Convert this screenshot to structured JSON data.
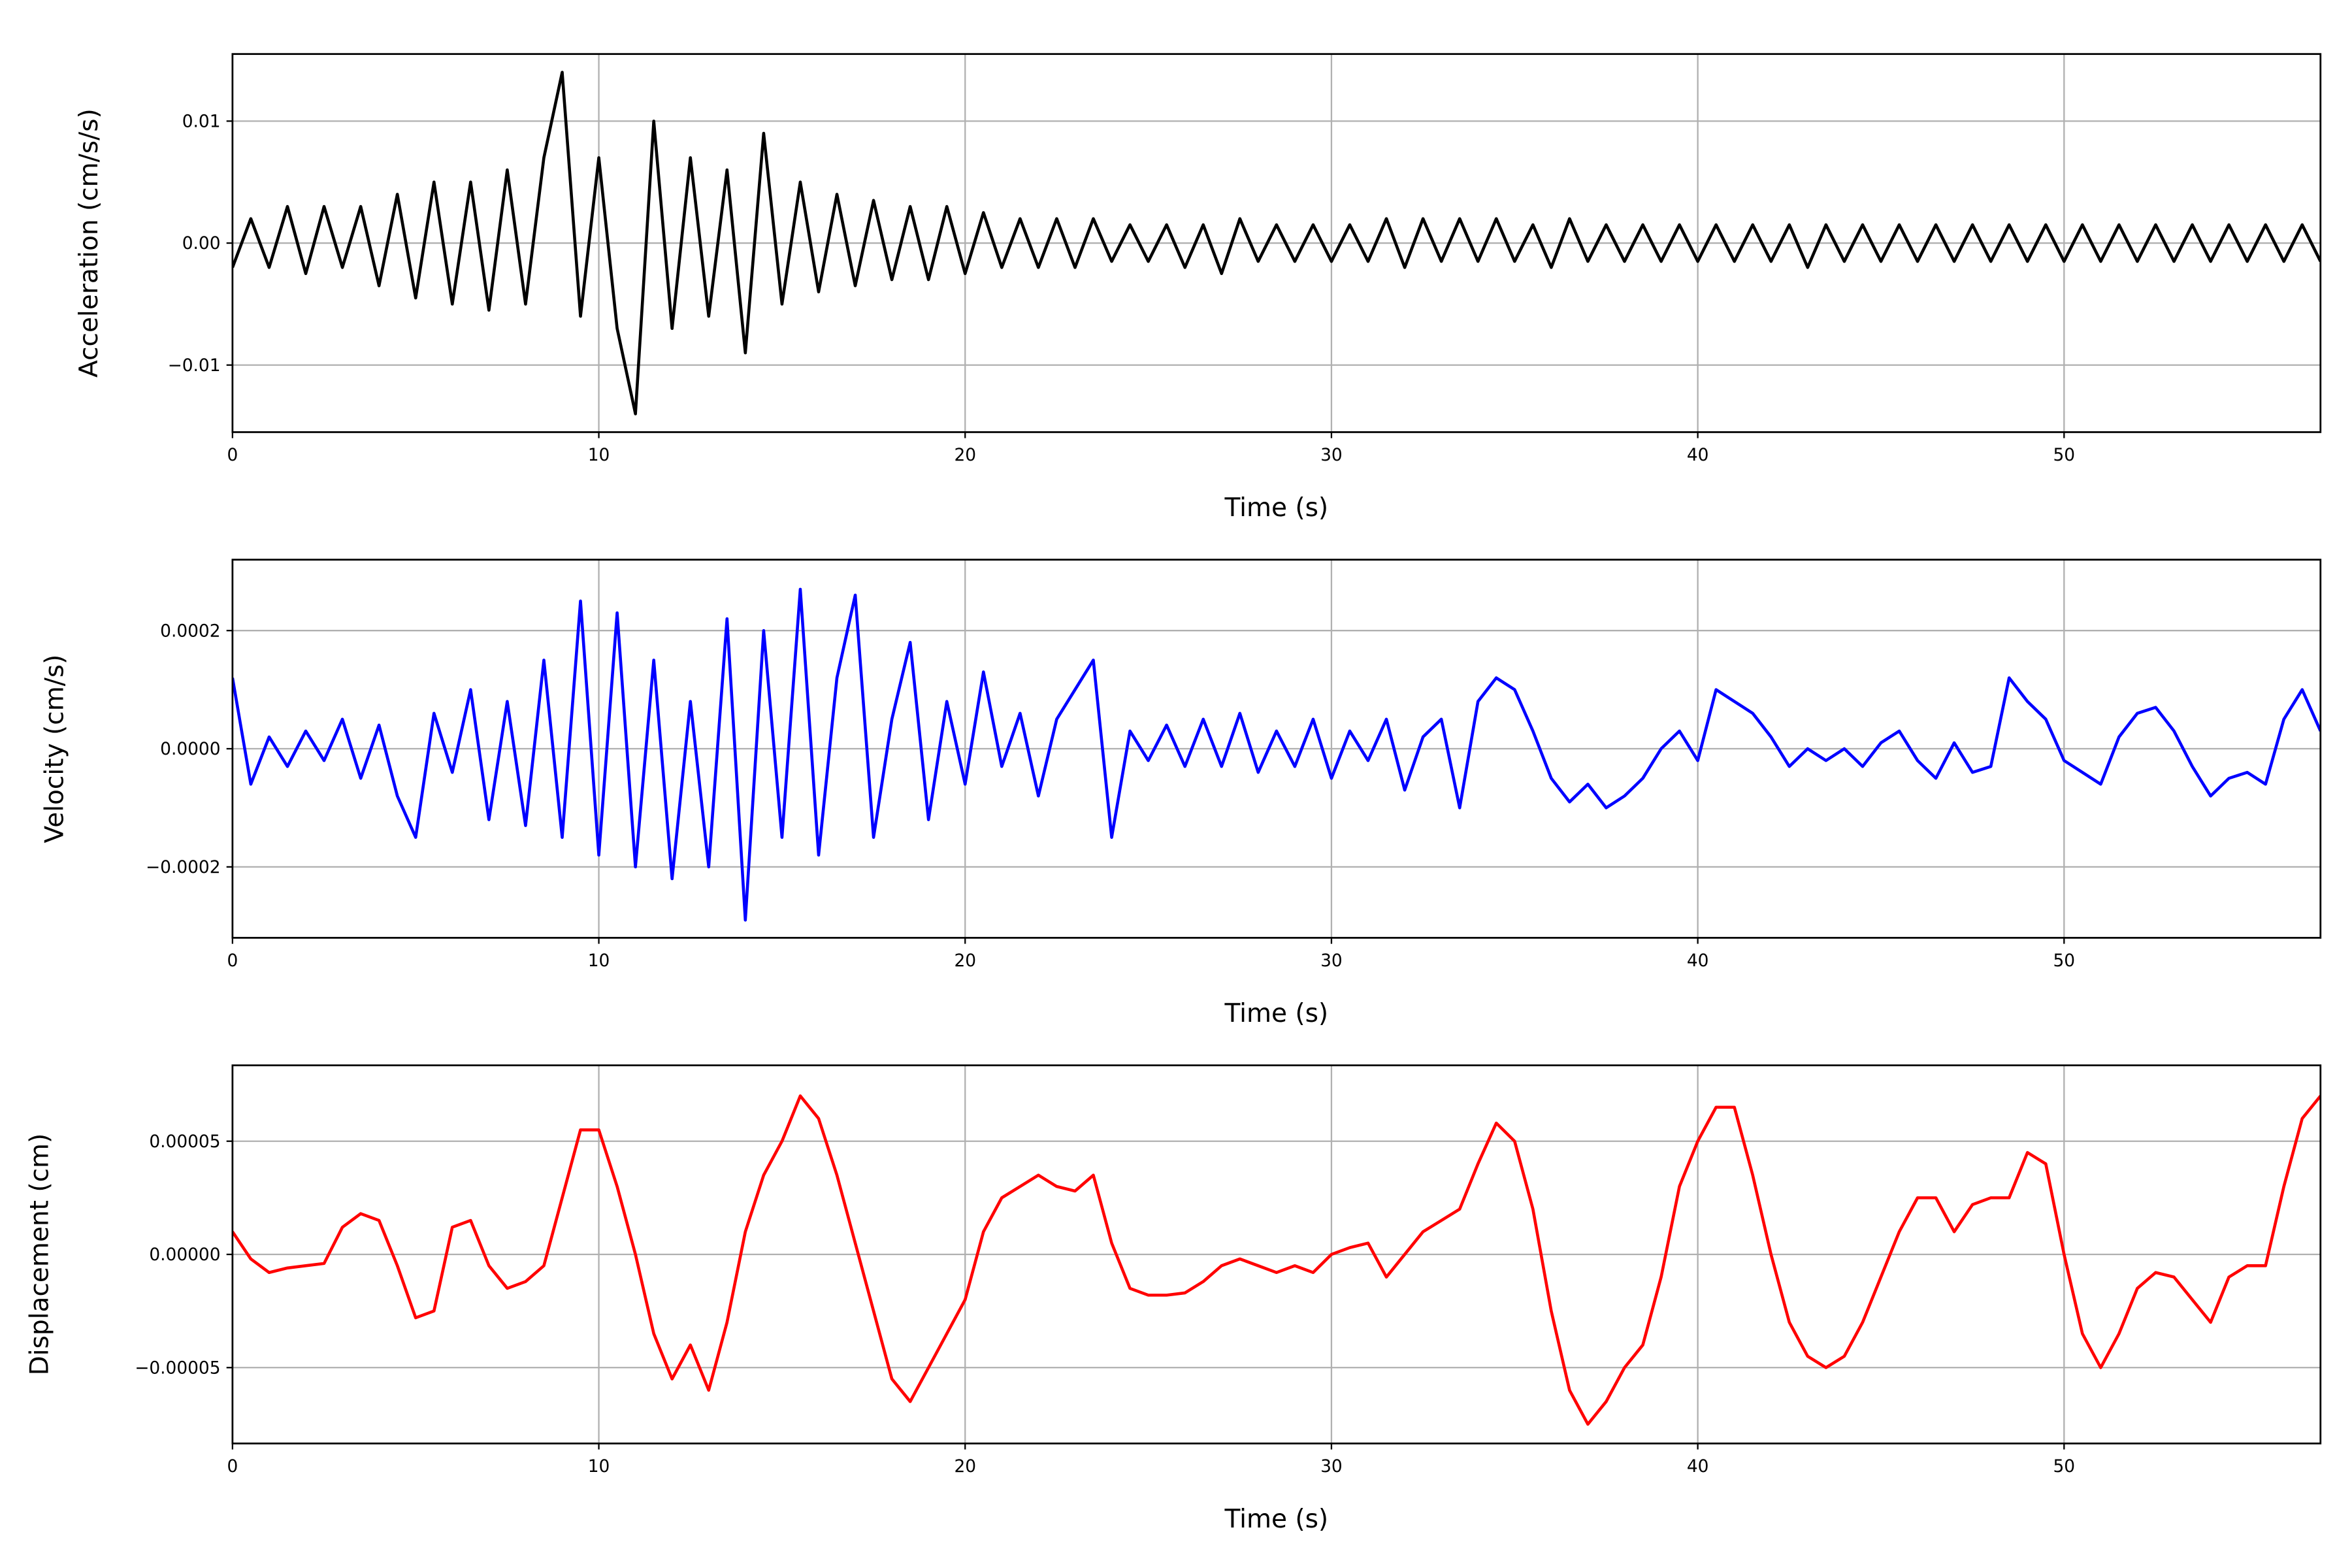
{
  "chart_data": [
    {
      "type": "line",
      "xlabel": "Time (s)",
      "ylabel": "Acceleration (cm/s/s)",
      "color": "#000000",
      "x": [
        0,
        0.5,
        1,
        1.5,
        2,
        2.5,
        3,
        3.5,
        4,
        4.5,
        5,
        5.5,
        6,
        6.5,
        7,
        7.5,
        8,
        8.5,
        9,
        9.5,
        10,
        10.5,
        11,
        11.5,
        12,
        12.5,
        13,
        13.5,
        14,
        14.5,
        15,
        15.5,
        16,
        16.5,
        17,
        17.5,
        18,
        18.5,
        19,
        19.5,
        20,
        20.5,
        21,
        21.5,
        22,
        22.5,
        23,
        23.5,
        24,
        24.5,
        25,
        25.5,
        26,
        26.5,
        27,
        27.5,
        28,
        28.5,
        29,
        29.5,
        30,
        30.5,
        31,
        31.5,
        32,
        32.5,
        33,
        33.5,
        34,
        34.5,
        35,
        35.5,
        36,
        36.5,
        37,
        37.5,
        38,
        38.5,
        39,
        39.5,
        40,
        40.5,
        41,
        41.5,
        42,
        42.5,
        43,
        43.5,
        44,
        44.5,
        45,
        45.5,
        46,
        46.5,
        47,
        47.5,
        48,
        48.5,
        49,
        49.5,
        50,
        50.5,
        51,
        51.5,
        52,
        52.5,
        53,
        53.5,
        54,
        54.5,
        55,
        55.5,
        56,
        56.5,
        57
      ],
      "values": [
        -0.002,
        0.002,
        -0.002,
        0.003,
        -0.0025,
        0.003,
        -0.002,
        0.003,
        -0.0035,
        0.004,
        -0.0045,
        0.005,
        -0.005,
        0.005,
        -0.0055,
        0.006,
        -0.005,
        0.007,
        0.014,
        -0.006,
        0.007,
        -0.007,
        -0.014,
        0.01,
        -0.007,
        0.007,
        -0.006,
        0.006,
        -0.009,
        0.009,
        -0.005,
        0.005,
        -0.004,
        0.004,
        -0.0035,
        0.0035,
        -0.003,
        0.003,
        -0.003,
        0.003,
        -0.0025,
        0.0025,
        -0.002,
        0.002,
        -0.002,
        0.002,
        -0.002,
        0.002,
        -0.0015,
        0.0015,
        -0.0015,
        0.0015,
        -0.002,
        0.0015,
        -0.0025,
        0.002,
        -0.0015,
        0.0015,
        -0.0015,
        0.0015,
        -0.0015,
        0.0015,
        -0.0015,
        0.002,
        -0.002,
        0.002,
        -0.0015,
        0.002,
        -0.0015,
        0.002,
        -0.0015,
        0.0015,
        -0.002,
        0.002,
        -0.0015,
        0.0015,
        -0.0015,
        0.0015,
        -0.0015,
        0.0015,
        -0.0015,
        0.0015,
        -0.0015,
        0.0015,
        -0.0015,
        0.0015,
        -0.002,
        0.0015,
        -0.0015,
        0.0015,
        -0.0015,
        0.0015,
        -0.0015,
        0.0015,
        -0.0015,
        0.0015,
        -0.0015,
        0.0015,
        -0.0015,
        0.0015,
        -0.0015,
        0.0015,
        -0.0015,
        0.0015,
        -0.0015,
        0.0015,
        -0.0015,
        0.0015,
        -0.0015,
        0.0015,
        -0.0015,
        0.0015,
        -0.0015,
        0.0015,
        -0.0015
      ],
      "xlim": [
        0,
        57
      ],
      "xticks": [
        0,
        10,
        20,
        30,
        40,
        50
      ],
      "ylim": [
        -0.0155,
        0.0155
      ],
      "yticks": [
        {
          "value": -0.01,
          "label": "−0.01"
        },
        {
          "value": 0,
          "label": "0.00"
        },
        0.01
      ],
      "grid": true
    },
    {
      "type": "line",
      "xlabel": "Time (s)",
      "ylabel": "Velocity (cm/s)",
      "color": "#0000ff",
      "x": [
        0,
        0.5,
        1,
        1.5,
        2,
        2.5,
        3,
        3.5,
        4,
        4.5,
        5,
        5.5,
        6,
        6.5,
        7,
        7.5,
        8,
        8.5,
        9,
        9.5,
        10,
        10.5,
        11,
        11.5,
        12,
        12.5,
        13,
        13.5,
        14,
        14.5,
        15,
        15.5,
        16,
        16.5,
        17,
        17.5,
        18,
        18.5,
        19,
        19.5,
        20,
        20.5,
        21,
        21.5,
        22,
        22.5,
        23,
        23.5,
        24,
        24.5,
        25,
        25.5,
        26,
        26.5,
        27,
        27.5,
        28,
        28.5,
        29,
        29.5,
        30,
        30.5,
        31,
        31.5,
        32,
        32.5,
        33,
        33.5,
        34,
        34.5,
        35,
        35.5,
        36,
        36.5,
        37,
        37.5,
        38,
        38.5,
        39,
        39.5,
        40,
        40.5,
        41,
        41.5,
        42,
        42.5,
        43,
        43.5,
        44,
        44.5,
        45,
        45.5,
        46,
        46.5,
        47,
        47.5,
        48,
        48.5,
        49,
        49.5,
        50,
        50.5,
        51,
        51.5,
        52,
        52.5,
        53,
        53.5,
        54,
        54.5,
        55,
        55.5,
        56,
        56.5,
        57
      ],
      "values": [
        0.00012,
        -6e-05,
        2e-05,
        -3e-05,
        3e-05,
        -2e-05,
        5e-05,
        -5e-05,
        4e-05,
        -8e-05,
        -0.00015,
        6e-05,
        -4e-05,
        0.0001,
        -0.00012,
        8e-05,
        -0.00013,
        0.00015,
        -0.00015,
        0.00025,
        -0.00018,
        0.00023,
        -0.0002,
        0.00015,
        -0.00022,
        8e-05,
        -0.0002,
        0.00022,
        -0.00029,
        0.0002,
        -0.00015,
        0.00027,
        -0.00018,
        0.00012,
        0.00026,
        -0.00015,
        5e-05,
        0.00018,
        -0.00012,
        8e-05,
        -6e-05,
        0.00013,
        -3e-05,
        6e-05,
        -8e-05,
        5e-05,
        0.0001,
        0.00015,
        -0.00015,
        3e-05,
        -2e-05,
        4e-05,
        -3e-05,
        5e-05,
        -3e-05,
        6e-05,
        -4e-05,
        3e-05,
        -3e-05,
        5e-05,
        -5e-05,
        3e-05,
        -2e-05,
        5e-05,
        -7e-05,
        2e-05,
        5e-05,
        -0.0001,
        8e-05,
        0.00012,
        0.0001,
        3e-05,
        -5e-05,
        -9e-05,
        -6e-05,
        -0.0001,
        -8e-05,
        -5e-05,
        0,
        3e-05,
        -2e-05,
        0.0001,
        8e-05,
        6e-05,
        2e-05,
        -3e-05,
        0,
        -2e-05,
        0,
        -3e-05,
        1e-05,
        3e-05,
        -2e-05,
        -5e-05,
        1e-05,
        -4e-05,
        -3e-05,
        0.00012,
        8e-05,
        5e-05,
        -2e-05,
        -4e-05,
        -6e-05,
        2e-05,
        6e-05,
        7e-05,
        3e-05,
        -3e-05,
        -8e-05,
        -5e-05,
        -4e-05,
        -6e-05,
        5e-05,
        0.0001,
        3e-05
      ],
      "xlim": [
        0,
        57
      ],
      "xticks": [
        0,
        10,
        20,
        30,
        40,
        50
      ],
      "ylim": [
        -0.00032,
        0.00032
      ],
      "yticks": [
        {
          "value": -0.0002,
          "label": "−0.0002"
        },
        {
          "value": 0,
          "label": "0.0000"
        },
        0.0002
      ],
      "grid": true
    },
    {
      "type": "line",
      "xlabel": "Time (s)",
      "ylabel": "Displacement (cm)",
      "color": "#ff0000",
      "x": [
        0,
        0.5,
        1,
        1.5,
        2,
        2.5,
        3,
        3.5,
        4,
        4.5,
        5,
        5.5,
        6,
        6.5,
        7,
        7.5,
        8,
        8.5,
        9,
        9.5,
        10,
        10.5,
        11,
        11.5,
        12,
        12.5,
        13,
        13.5,
        14,
        14.5,
        15,
        15.5,
        16,
        16.5,
        17,
        17.5,
        18,
        18.5,
        19,
        19.5,
        20,
        20.5,
        21,
        21.5,
        22,
        22.5,
        23,
        23.5,
        24,
        24.5,
        25,
        25.5,
        26,
        26.5,
        27,
        27.5,
        28,
        28.5,
        29,
        29.5,
        30,
        30.5,
        31,
        31.5,
        32,
        32.5,
        33,
        33.5,
        34,
        34.5,
        35,
        35.5,
        36,
        36.5,
        37,
        37.5,
        38,
        38.5,
        39,
        39.5,
        40,
        40.5,
        41,
        41.5,
        42,
        42.5,
        43,
        43.5,
        44,
        44.5,
        45,
        45.5,
        46,
        46.5,
        47,
        47.5,
        48,
        48.5,
        49,
        49.5,
        50,
        50.5,
        51,
        51.5,
        52,
        52.5,
        53,
        53.5,
        54,
        54.5,
        55,
        55.5,
        56,
        56.5,
        57
      ],
      "values": [
        1e-05,
        -2e-06,
        -8e-06,
        -6e-06,
        -5e-06,
        -4e-06,
        1.2e-05,
        1.8e-05,
        1.5e-05,
        -5e-06,
        -2.8e-05,
        -2.5e-05,
        1.2e-05,
        1.5e-05,
        -5e-06,
        -1.5e-05,
        -1.2e-05,
        -5e-06,
        2.5e-05,
        5.5e-05,
        5.5e-05,
        3e-05,
        0,
        -3.5e-05,
        -5.5e-05,
        -4e-05,
        -6e-05,
        -3e-05,
        1e-05,
        3.5e-05,
        5e-05,
        7e-05,
        6e-05,
        3.5e-05,
        5e-06,
        -2.5e-05,
        -5.5e-05,
        -6.5e-05,
        -5e-05,
        -3.5e-05,
        -2e-05,
        1e-05,
        2.5e-05,
        3e-05,
        3.5e-05,
        3e-05,
        2.8e-05,
        3.5e-05,
        5e-06,
        -1.5e-05,
        -1.8e-05,
        -1.8e-05,
        -1.7e-05,
        -1.2e-05,
        -5e-06,
        -2e-06,
        -5e-06,
        -8e-06,
        -5e-06,
        -8e-06,
        0,
        3e-06,
        5e-06,
        -1e-05,
        0,
        1e-05,
        1.5e-05,
        2e-05,
        4e-05,
        5.8e-05,
        5e-05,
        2e-05,
        -2.5e-05,
        -6e-05,
        -7.5e-05,
        -6.5e-05,
        -5e-05,
        -4e-05,
        -1e-05,
        3e-05,
        5e-05,
        6.5e-05,
        6.5e-05,
        3.5e-05,
        0,
        -3e-05,
        -4.5e-05,
        -5e-05,
        -4.5e-05,
        -3e-05,
        -1e-05,
        1e-05,
        2.5e-05,
        2.5e-05,
        1e-05,
        2.2e-05,
        2.5e-05,
        2.5e-05,
        4.5e-05,
        4e-05,
        0,
        -3.5e-05,
        -5e-05,
        -3.5e-05,
        -1.5e-05,
        -8e-06,
        -1e-05,
        -2e-05,
        -3e-05,
        -1e-05,
        -5e-06,
        -5e-06,
        3e-05,
        6e-05,
        7e-05
      ],
      "xlim": [
        0,
        57
      ],
      "xticks": [
        0,
        10,
        20,
        30,
        40,
        50
      ],
      "ylim": [
        -8.35e-05,
        8.35e-05
      ],
      "yticks": [
        {
          "value": -5e-05,
          "label": "−0.00005"
        },
        {
          "value": 0,
          "label": "0.00000"
        },
        5e-05
      ],
      "grid": true
    }
  ]
}
